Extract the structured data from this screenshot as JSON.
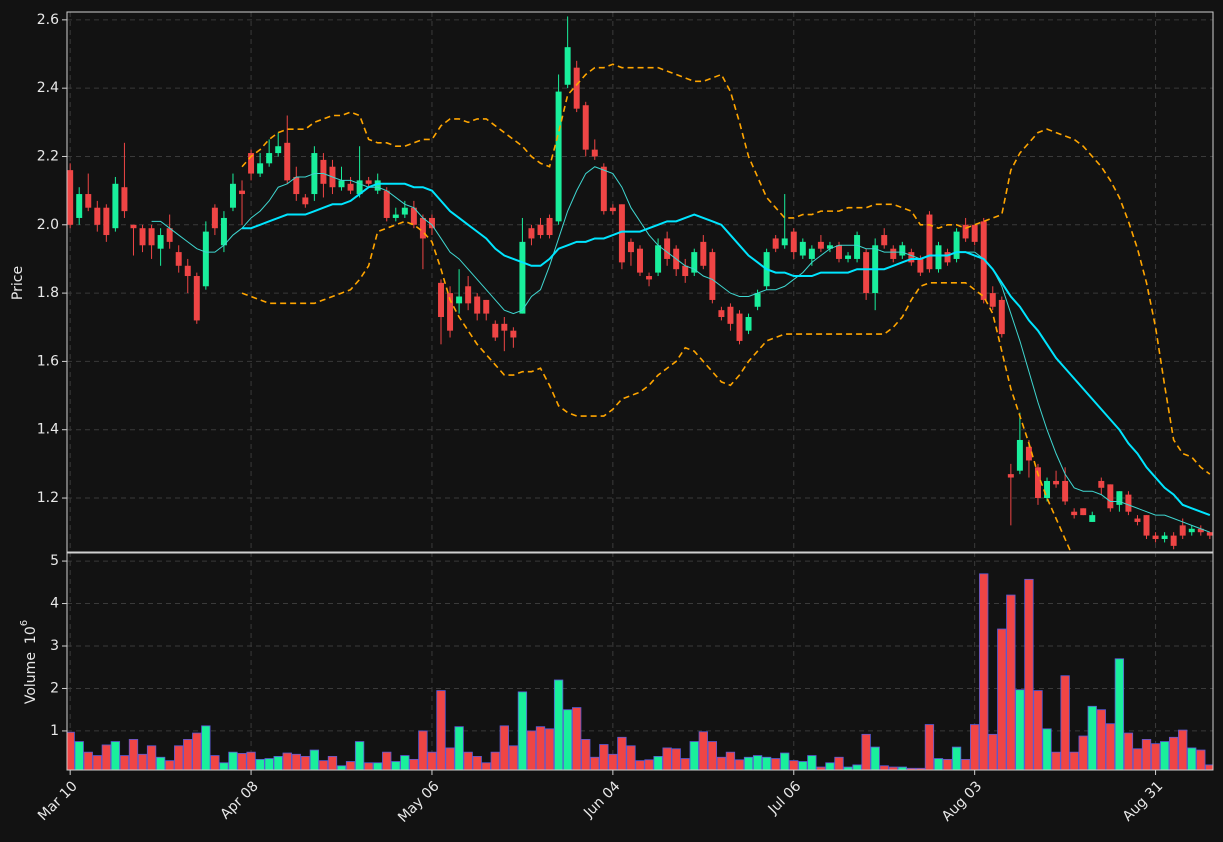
{
  "chart_data": {
    "type": "candlestick",
    "categories": [
      "Mar 10",
      null,
      null,
      null,
      null,
      null,
      null,
      null,
      null,
      null,
      null,
      null,
      null,
      null,
      null,
      null,
      null,
      null,
      null,
      null,
      "Apr 08",
      null,
      null,
      null,
      null,
      null,
      null,
      null,
      null,
      null,
      null,
      null,
      null,
      null,
      null,
      null,
      null,
      null,
      null,
      null,
      "May 06",
      null,
      null,
      null,
      null,
      null,
      null,
      null,
      null,
      null,
      null,
      null,
      null,
      null,
      null,
      null,
      null,
      null,
      null,
      null,
      "Jun 04",
      null,
      null,
      null,
      null,
      null,
      null,
      null,
      null,
      null,
      null,
      null,
      null,
      null,
      null,
      null,
      null,
      null,
      null,
      null,
      "Jul 06",
      null,
      null,
      null,
      null,
      null,
      null,
      null,
      null,
      null,
      null,
      null,
      null,
      null,
      null,
      null,
      null,
      null,
      null,
      null,
      "Aug 03",
      null,
      null,
      null,
      null,
      null,
      null,
      null,
      null,
      null,
      null,
      null,
      null,
      null,
      null,
      null,
      null,
      null,
      null,
      null,
      "Aug 31",
      null,
      null,
      null,
      null,
      null,
      null
    ],
    "open": [
      2.16,
      2.02,
      2.09,
      2.05,
      2.05,
      1.99,
      2.11,
      2.0,
      1.99,
      1.99,
      1.93,
      1.99,
      1.92,
      1.88,
      1.85,
      1.82,
      2.05,
      1.94,
      2.05,
      2.1,
      2.21,
      2.15,
      2.18,
      2.21,
      2.24,
      2.14,
      2.08,
      2.09,
      2.19,
      2.17,
      2.11,
      2.12,
      2.09,
      2.13,
      2.1,
      2.1,
      2.02,
      2.03,
      2.05,
      2.02,
      2.02,
      1.83,
      1.8,
      1.77,
      1.82,
      1.79,
      1.78,
      1.71,
      1.71,
      1.69,
      1.74,
      1.99,
      2.0,
      2.02,
      2.01,
      2.41,
      2.46,
      2.35,
      2.22,
      2.17,
      2.05,
      2.06,
      1.95,
      1.93,
      1.85,
      1.86,
      1.96,
      1.93,
      1.88,
      1.86,
      1.95,
      1.92,
      1.75,
      1.76,
      1.74,
      1.69,
      1.76,
      1.82,
      1.96,
      1.94,
      1.98,
      1.91,
      1.9,
      1.95,
      1.93,
      1.94,
      1.9,
      1.9,
      1.92,
      1.8,
      1.97,
      1.93,
      1.91,
      1.92,
      1.9,
      2.03,
      1.87,
      1.92,
      1.9,
      2.0,
      2.0,
      2.01,
      1.8,
      1.78,
      1.27,
      1.28,
      1.35,
      1.29,
      1.2,
      1.25,
      1.25,
      1.16,
      1.17,
      1.13,
      1.25,
      1.24,
      1.18,
      1.21,
      1.14,
      1.15,
      1.09,
      1.08,
      1.09,
      1.12,
      1.1,
      1.11,
      1.1
    ],
    "high": [
      2.18,
      2.11,
      2.15,
      2.07,
      2.06,
      2.14,
      2.24,
      2.0,
      2.0,
      2.0,
      1.99,
      2.03,
      1.94,
      1.9,
      1.86,
      2.01,
      2.06,
      2.04,
      2.15,
      2.13,
      2.22,
      2.21,
      2.25,
      2.27,
      2.32,
      2.17,
      2.09,
      2.23,
      2.21,
      2.19,
      2.17,
      2.14,
      2.23,
      2.14,
      2.15,
      2.11,
      2.05,
      2.07,
      2.07,
      2.03,
      2.03,
      1.84,
      1.82,
      1.87,
      1.85,
      1.8,
      1.78,
      1.72,
      1.73,
      1.7,
      2.02,
      2.0,
      2.02,
      2.03,
      2.44,
      2.61,
      2.48,
      2.36,
      2.25,
      2.18,
      2.06,
      2.06,
      1.96,
      1.94,
      1.86,
      1.96,
      1.98,
      1.94,
      1.9,
      1.93,
      1.97,
      1.93,
      1.76,
      1.77,
      1.75,
      1.74,
      1.81,
      1.93,
      1.97,
      2.09,
      1.99,
      1.96,
      1.94,
      1.97,
      1.95,
      1.95,
      1.92,
      1.98,
      1.93,
      1.96,
      1.99,
      1.94,
      1.95,
      1.93,
      1.91,
      2.04,
      1.95,
      1.93,
      1.99,
      2.02,
      2.0,
      2.02,
      1.82,
      1.79,
      1.3,
      1.45,
      1.37,
      1.3,
      1.26,
      1.28,
      1.29,
      1.17,
      1.17,
      1.16,
      1.26,
      1.24,
      1.22,
      1.22,
      1.15,
      1.15,
      1.1,
      1.1,
      1.1,
      1.14,
      1.12,
      1.12,
      1.1
    ],
    "low": [
      1.99,
      2.0,
      2.04,
      1.98,
      1.95,
      1.98,
      2.02,
      1.91,
      1.92,
      1.9,
      1.88,
      1.93,
      1.86,
      1.8,
      1.71,
      1.81,
      1.97,
      1.92,
      2.04,
      2.0,
      2.13,
      2.14,
      2.17,
      2.2,
      2.12,
      2.07,
      2.05,
      2.07,
      2.08,
      2.09,
      2.1,
      2.09,
      2.08,
      2.11,
      2.09,
      2.01,
      2.01,
      2.02,
      1.99,
      1.87,
      1.97,
      1.65,
      1.67,
      1.74,
      1.75,
      1.72,
      1.72,
      1.66,
      1.63,
      1.64,
      1.74,
      1.94,
      1.96,
      1.96,
      2.0,
      2.4,
      2.33,
      2.2,
      2.19,
      2.03,
      2.03,
      1.87,
      1.88,
      1.85,
      1.82,
      1.85,
      1.88,
      1.85,
      1.83,
      1.85,
      1.87,
      1.77,
      1.72,
      1.69,
      1.65,
      1.68,
      1.75,
      1.81,
      1.92,
      1.93,
      1.9,
      1.9,
      1.88,
      1.92,
      1.92,
      1.89,
      1.89,
      1.89,
      1.78,
      1.75,
      1.93,
      1.89,
      1.9,
      1.88,
      1.85,
      1.86,
      1.86,
      1.88,
      1.89,
      1.95,
      1.94,
      1.77,
      1.75,
      1.67,
      1.12,
      1.27,
      1.26,
      1.18,
      1.19,
      1.23,
      1.18,
      1.14,
      1.15,
      1.13,
      1.21,
      1.16,
      1.16,
      1.15,
      1.12,
      1.08,
      1.07,
      1.07,
      1.05,
      1.08,
      1.09,
      1.09,
      1.08
    ],
    "close": [
      2.0,
      2.09,
      2.05,
      2.0,
      1.97,
      2.12,
      2.04,
      1.99,
      1.94,
      1.94,
      1.97,
      1.95,
      1.88,
      1.85,
      1.72,
      1.98,
      1.99,
      2.02,
      2.12,
      2.09,
      2.15,
      2.18,
      2.21,
      2.23,
      2.13,
      2.09,
      2.06,
      2.21,
      2.12,
      2.11,
      2.13,
      2.1,
      2.13,
      2.12,
      2.13,
      2.02,
      2.03,
      2.05,
      2.0,
      1.96,
      1.99,
      1.73,
      1.69,
      1.79,
      1.77,
      1.74,
      1.74,
      1.67,
      1.69,
      1.67,
      1.95,
      1.96,
      1.97,
      1.97,
      2.39,
      2.52,
      2.34,
      2.22,
      2.2,
      2.04,
      2.04,
      1.89,
      1.92,
      1.86,
      1.84,
      1.94,
      1.9,
      1.87,
      1.85,
      1.92,
      1.88,
      1.78,
      1.73,
      1.71,
      1.66,
      1.73,
      1.8,
      1.92,
      1.93,
      1.96,
      1.92,
      1.95,
      1.93,
      1.93,
      1.94,
      1.9,
      1.91,
      1.97,
      1.8,
      1.94,
      1.94,
      1.9,
      1.94,
      1.89,
      1.86,
      1.87,
      1.94,
      1.89,
      1.98,
      1.96,
      1.95,
      1.78,
      1.76,
      1.68,
      1.26,
      1.37,
      1.31,
      1.2,
      1.25,
      1.24,
      1.19,
      1.15,
      1.15,
      1.15,
      1.23,
      1.17,
      1.22,
      1.16,
      1.13,
      1.09,
      1.08,
      1.09,
      1.06,
      1.09,
      1.11,
      1.1,
      1.09
    ],
    "up_color": "#19ef9c",
    "down_color": "#ef4545",
    "ylabel": "Price",
    "ylim": [
      1.042,
      2.623
    ],
    "yticks": [
      1.2,
      1.4,
      1.6,
      1.8,
      {
        "value": 2,
        "label": "2.0"
      },
      2.2,
      2.4,
      2.6
    ],
    "grid": true,
    "overlays": [
      {
        "color": "#ffa500",
        "style": "dashed",
        "width": 1.6,
        "values": [
          null,
          null,
          null,
          null,
          null,
          null,
          null,
          null,
          null,
          null,
          null,
          null,
          null,
          null,
          null,
          null,
          null,
          null,
          null,
          2.17,
          2.2,
          2.22,
          2.25,
          2.27,
          2.28,
          2.28,
          2.28,
          2.3,
          2.31,
          2.32,
          2.32,
          2.33,
          2.32,
          2.25,
          2.24,
          2.24,
          2.23,
          2.23,
          2.24,
          2.25,
          2.25,
          2.29,
          2.31,
          2.31,
          2.3,
          2.31,
          2.31,
          2.29,
          2.27,
          2.25,
          2.23,
          2.2,
          2.18,
          2.17,
          2.27,
          2.38,
          2.41,
          2.44,
          2.46,
          2.46,
          2.47,
          2.46,
          2.46,
          2.46,
          2.46,
          2.46,
          2.45,
          2.44,
          2.43,
          2.42,
          2.42,
          2.43,
          2.44,
          2.39,
          2.3,
          2.2,
          2.14,
          2.08,
          2.05,
          2.02,
          2.02,
          2.03,
          2.03,
          2.04,
          2.04,
          2.04,
          2.05,
          2.05,
          2.05,
          2.06,
          2.06,
          2.06,
          2.05,
          2.04,
          2.0,
          2.0,
          1.99,
          2.0,
          2.0,
          1.99,
          2.0,
          2.01,
          2.02,
          2.03,
          2.16,
          2.21,
          2.24,
          2.27,
          2.28,
          2.27,
          2.26,
          2.25,
          2.23,
          2.2,
          2.17,
          2.13,
          2.08,
          2.01,
          1.93,
          1.83,
          1.7,
          1.53,
          1.37,
          1.33,
          1.32,
          1.29,
          1.27
        ]
      },
      {
        "color": "#ffa500",
        "style": "dashed",
        "width": 1.6,
        "values": [
          null,
          null,
          null,
          null,
          null,
          null,
          null,
          null,
          null,
          null,
          null,
          null,
          null,
          null,
          null,
          null,
          null,
          null,
          null,
          1.8,
          1.79,
          1.78,
          1.77,
          1.77,
          1.77,
          1.77,
          1.77,
          1.77,
          1.78,
          1.79,
          1.8,
          1.81,
          1.84,
          1.88,
          1.98,
          1.99,
          2.0,
          2.01,
          2.0,
          1.98,
          1.95,
          1.87,
          1.78,
          1.73,
          1.69,
          1.65,
          1.62,
          1.59,
          1.56,
          1.56,
          1.57,
          1.57,
          1.58,
          1.53,
          1.47,
          1.45,
          1.44,
          1.44,
          1.44,
          1.44,
          1.46,
          1.49,
          1.5,
          1.51,
          1.53,
          1.56,
          1.58,
          1.6,
          1.64,
          1.63,
          1.6,
          1.57,
          1.54,
          1.53,
          1.56,
          1.6,
          1.63,
          1.66,
          1.67,
          1.68,
          1.68,
          1.68,
          1.68,
          1.68,
          1.68,
          1.68,
          1.68,
          1.68,
          1.68,
          1.68,
          1.68,
          1.7,
          1.73,
          1.78,
          1.82,
          1.83,
          1.83,
          1.83,
          1.83,
          1.83,
          1.81,
          1.79,
          1.74,
          1.63,
          1.52,
          1.44,
          1.36,
          1.27,
          1.2,
          1.14,
          1.08,
          1.02,
          null,
          null,
          null,
          null,
          null,
          null,
          null,
          null,
          null,
          null,
          null,
          null,
          null,
          null,
          null
        ]
      },
      {
        "color": "#3fd6d0",
        "style": "solid",
        "width": 1,
        "values": [
          null,
          null,
          null,
          null,
          null,
          null,
          null,
          null,
          null,
          2.01,
          2.01,
          1.99,
          1.97,
          1.95,
          1.93,
          1.92,
          1.92,
          1.94,
          1.97,
          1.99,
          2.02,
          2.04,
          2.07,
          2.11,
          2.12,
          2.14,
          2.14,
          2.15,
          2.15,
          2.14,
          2.13,
          2.13,
          2.12,
          2.11,
          2.11,
          2.1,
          2.08,
          2.06,
          2.05,
          2.02,
          2.0,
          1.96,
          1.92,
          1.9,
          1.87,
          1.84,
          1.81,
          1.78,
          1.75,
          1.74,
          1.75,
          1.79,
          1.81,
          1.88,
          1.96,
          2.04,
          2.1,
          2.15,
          2.17,
          2.16,
          2.15,
          2.11,
          2.05,
          2.01,
          1.97,
          1.94,
          1.92,
          1.9,
          1.88,
          1.87,
          1.85,
          1.84,
          1.82,
          1.8,
          1.79,
          1.79,
          1.8,
          1.81,
          1.81,
          1.82,
          1.84,
          1.86,
          1.89,
          1.91,
          1.93,
          1.94,
          1.94,
          1.94,
          1.93,
          1.93,
          1.92,
          1.92,
          1.92,
          1.91,
          1.9,
          1.91,
          1.91,
          1.91,
          1.92,
          1.92,
          1.92,
          1.9,
          1.87,
          1.82,
          1.74,
          1.66,
          1.57,
          1.48,
          1.4,
          1.33,
          1.27,
          1.23,
          1.22,
          1.22,
          1.21,
          1.19,
          1.19,
          1.18,
          1.17,
          1.16,
          1.15,
          1.15,
          1.14,
          1.13,
          1.12,
          1.11,
          1.1
        ]
      },
      {
        "color": "#00e5ff",
        "style": "solid",
        "width": 2,
        "values": [
          null,
          null,
          null,
          null,
          null,
          null,
          null,
          null,
          null,
          null,
          null,
          null,
          null,
          null,
          null,
          null,
          null,
          null,
          null,
          1.99,
          1.99,
          2.0,
          2.01,
          2.02,
          2.03,
          2.03,
          2.03,
          2.04,
          2.05,
          2.06,
          2.06,
          2.07,
          2.09,
          2.11,
          2.12,
          2.12,
          2.12,
          2.12,
          2.11,
          2.11,
          2.1,
          2.07,
          2.04,
          2.02,
          2.0,
          1.98,
          1.96,
          1.93,
          1.91,
          1.9,
          1.89,
          1.88,
          1.88,
          1.9,
          1.93,
          1.94,
          1.95,
          1.95,
          1.96,
          1.96,
          1.97,
          1.98,
          1.98,
          1.98,
          1.99,
          2.0,
          2.01,
          2.01,
          2.02,
          2.03,
          2.02,
          2.01,
          2.0,
          1.97,
          1.94,
          1.91,
          1.89,
          1.87,
          1.86,
          1.86,
          1.85,
          1.85,
          1.85,
          1.86,
          1.86,
          1.86,
          1.86,
          1.87,
          1.87,
          1.87,
          1.87,
          1.88,
          1.89,
          1.9,
          1.9,
          1.91,
          1.91,
          1.91,
          1.92,
          1.92,
          1.91,
          1.9,
          1.87,
          1.83,
          1.79,
          1.76,
          1.72,
          1.69,
          1.65,
          1.61,
          1.58,
          1.55,
          1.52,
          1.49,
          1.46,
          1.43,
          1.4,
          1.36,
          1.33,
          1.29,
          1.26,
          1.23,
          1.21,
          1.18,
          1.17,
          1.16,
          1.15
        ]
      }
    ],
    "volume": {
      "values": [
        0.97,
        0.75,
        0.5,
        0.42,
        0.67,
        0.75,
        0.42,
        0.8,
        0.45,
        0.65,
        0.38,
        0.3,
        0.65,
        0.8,
        0.95,
        1.12,
        0.42,
        0.25,
        0.5,
        0.47,
        0.5,
        0.33,
        0.35,
        0.4,
        0.48,
        0.45,
        0.4,
        0.55,
        0.3,
        0.4,
        0.18,
        0.28,
        0.75,
        0.25,
        0.25,
        0.5,
        0.28,
        0.42,
        0.33,
        1.0,
        0.5,
        1.95,
        0.6,
        1.1,
        0.5,
        0.4,
        0.25,
        0.5,
        1.12,
        0.65,
        1.92,
        1.0,
        1.1,
        1.05,
        2.2,
        1.5,
        1.55,
        0.8,
        0.38,
        0.68,
        0.45,
        0.85,
        0.65,
        0.3,
        0.32,
        0.4,
        0.6,
        0.58,
        0.35,
        0.75,
        0.98,
        0.75,
        0.38,
        0.5,
        0.32,
        0.38,
        0.42,
        0.38,
        0.35,
        0.48,
        0.3,
        0.28,
        0.42,
        0.15,
        0.25,
        0.38,
        0.15,
        0.2,
        0.92,
        0.62,
        0.18,
        0.15,
        0.15,
        0.12,
        0.12,
        1.15,
        0.35,
        0.33,
        0.62,
        0.33,
        1.15,
        4.7,
        0.92,
        3.4,
        4.2,
        1.97,
        4.57,
        1.95,
        1.05,
        0.5,
        2.3,
        0.5,
        0.88,
        1.58,
        1.5,
        1.17,
        2.7,
        0.95,
        0.58,
        0.8,
        0.7,
        0.75,
        0.85,
        1.02,
        0.6,
        0.55,
        0.2
      ],
      "edge_color": "#5b5bd6",
      "ylabel": "Volume",
      "scale_base": "10",
      "scale_exponent": "6",
      "ylim": [
        0.08,
        5.19
      ],
      "yticks": [
        1,
        2,
        3,
        4,
        5
      ]
    }
  }
}
